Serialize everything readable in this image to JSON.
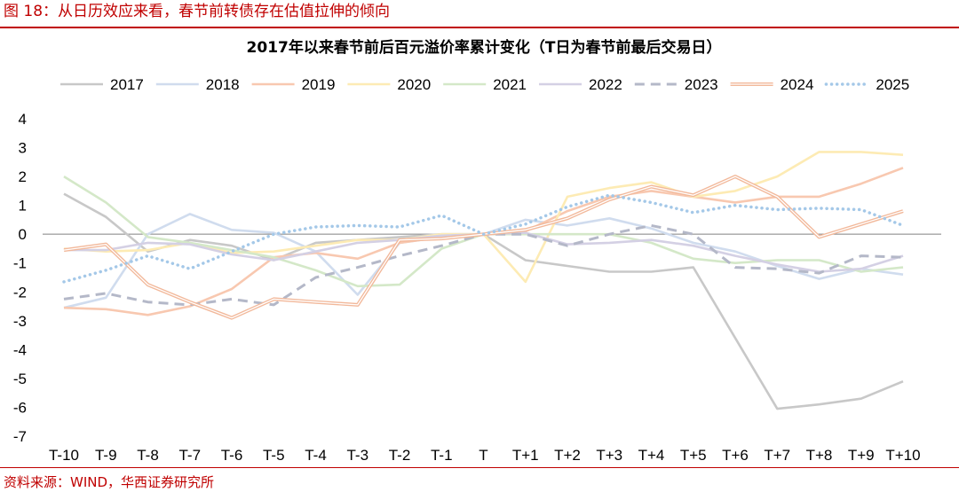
{
  "figure": {
    "header": "图 18：从日历效应来看，春节前转债存在估值拉伸的倾向",
    "source": "资料来源：WIND，华西证券研究所"
  },
  "chart_data": {
    "type": "line",
    "title": "2017年以来春节前后百元溢价率累计变化（T日为春节前最后交易日）",
    "xlabel": "",
    "ylabel": "",
    "categories": [
      "T-10",
      "T-9",
      "T-8",
      "T-7",
      "T-6",
      "T-5",
      "T-4",
      "T-3",
      "T-2",
      "T-1",
      "T",
      "T+1",
      "T+2",
      "T+3",
      "T+4",
      "T+5",
      "T+6",
      "T+7",
      "T+8",
      "T+9",
      "T+10"
    ],
    "y_ticks": [
      4,
      3,
      2,
      1,
      0,
      -1,
      -2,
      -3,
      -4,
      -5,
      -6,
      -7
    ],
    "ylim": [
      -7,
      4
    ],
    "grid": false,
    "legend_position": "top",
    "series": [
      {
        "name": "2017",
        "color": "#c8c8c8",
        "style": "solid",
        "values": [
          1.4,
          0.6,
          -0.6,
          -0.2,
          -0.4,
          -0.9,
          -0.3,
          -0.2,
          -0.1,
          0.0,
          0.0,
          -0.9,
          -1.1,
          -1.3,
          -1.3,
          -1.15,
          -3.6,
          -6.05,
          -5.9,
          -5.7,
          -5.1
        ]
      },
      {
        "name": "2018",
        "color": "#d0dcee",
        "style": "solid",
        "values": [
          -2.55,
          -2.2,
          0.0,
          0.7,
          0.15,
          0.05,
          -0.6,
          -2.1,
          -0.3,
          -0.1,
          0.0,
          0.5,
          0.3,
          0.55,
          0.2,
          -0.3,
          -0.6,
          -1.1,
          -1.55,
          -1.2,
          -1.4
        ]
      },
      {
        "name": "2019",
        "color": "#f8c8b0",
        "style": "solid",
        "values": [
          -2.55,
          -2.6,
          -2.8,
          -2.5,
          -1.9,
          -0.8,
          -0.65,
          -0.85,
          -0.3,
          -0.1,
          0.0,
          0.1,
          0.8,
          1.3,
          1.5,
          1.3,
          1.1,
          1.3,
          1.3,
          1.75,
          2.3
        ]
      },
      {
        "name": "2020",
        "color": "#fdebb4",
        "style": "solid",
        "values": [
          -0.5,
          -0.6,
          -0.55,
          -0.3,
          -0.65,
          -0.6,
          -0.4,
          -0.2,
          -0.2,
          0.0,
          0.0,
          -1.65,
          1.3,
          1.6,
          1.8,
          1.3,
          1.5,
          2.0,
          2.85,
          2.85,
          2.75
        ]
      },
      {
        "name": "2021",
        "color": "#d4e8c8",
        "style": "solid",
        "values": [
          2.0,
          1.1,
          -0.1,
          -0.3,
          -0.55,
          -0.8,
          -1.25,
          -1.8,
          -1.75,
          -0.5,
          0.0,
          0.0,
          0.0,
          0.0,
          -0.3,
          -0.85,
          -1.0,
          -0.9,
          -0.9,
          -1.3,
          -1.15
        ]
      },
      {
        "name": "2022",
        "color": "#d4d0e4",
        "style": "solid",
        "values": [
          -0.55,
          -0.55,
          -0.3,
          -0.35,
          -0.7,
          -0.9,
          -0.6,
          -0.3,
          -0.2,
          -0.05,
          0.0,
          0.05,
          -0.35,
          -0.3,
          -0.2,
          -0.4,
          -0.75,
          -1.05,
          -1.3,
          -1.2,
          -0.75
        ]
      },
      {
        "name": "2023",
        "color": "#b4b8c8",
        "style": "dash",
        "values": [
          -2.25,
          -2.05,
          -2.35,
          -2.45,
          -2.25,
          -2.45,
          -1.5,
          -1.15,
          -0.75,
          -0.4,
          0.0,
          0.0,
          -0.4,
          0.0,
          0.3,
          0.0,
          -1.15,
          -1.2,
          -1.35,
          -0.75,
          -0.8
        ]
      },
      {
        "name": "2024",
        "color": "#f2b89a",
        "style": "double",
        "values": [
          -0.55,
          -0.35,
          -1.75,
          -2.35,
          -2.9,
          -2.25,
          -2.35,
          -2.45,
          -0.2,
          -0.15,
          0.0,
          0.15,
          0.55,
          1.2,
          1.65,
          1.35,
          2.0,
          1.3,
          -0.1,
          0.35,
          0.8
        ]
      },
      {
        "name": "2025",
        "color": "#a4c8e8",
        "style": "dot",
        "values": [
          -1.65,
          -1.25,
          -0.75,
          -1.2,
          -0.6,
          0.0,
          0.25,
          0.3,
          0.25,
          0.65,
          0.0,
          0.35,
          0.95,
          1.35,
          1.1,
          0.75,
          1.0,
          0.85,
          0.9,
          0.85,
          0.3
        ]
      }
    ]
  }
}
